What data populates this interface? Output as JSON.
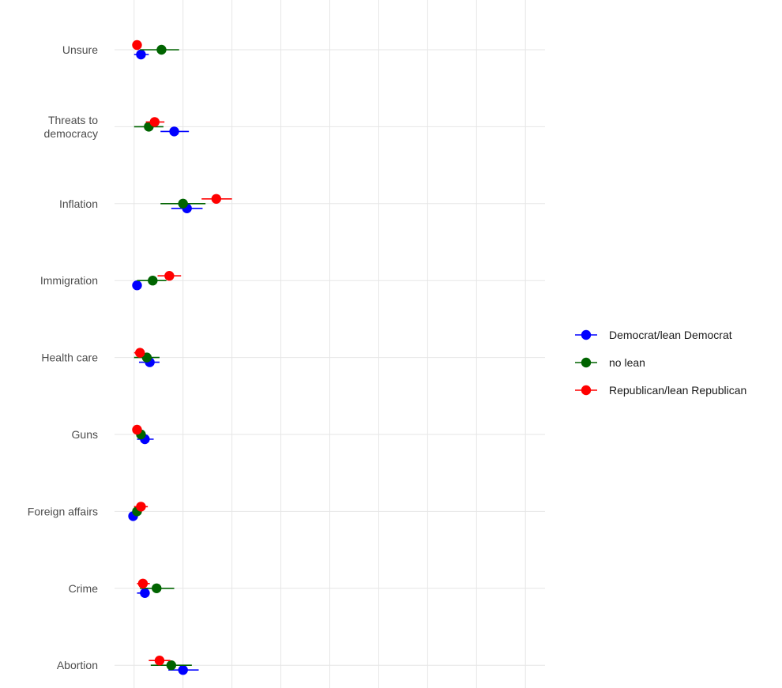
{
  "chart_data": {
    "type": "scatter",
    "subtype": "dot-with-error-bars",
    "title": "",
    "xlabel": "",
    "ylabel": "",
    "x_tick_labels_shown": false,
    "grid": true,
    "xlim": [
      -0.02,
      0.42
    ],
    "x_gridlines": [
      0,
      0.05,
      0.1,
      0.15,
      0.2,
      0.25,
      0.3,
      0.35,
      0.4
    ],
    "categories": [
      "Unsure",
      "Threats to democracy",
      "Inflation",
      "Immigration",
      "Health care",
      "Guns",
      "Foreign affairs",
      "Crime",
      "Abortion"
    ],
    "category_label_lines": [
      [
        "Unsure"
      ],
      [
        "Threats to",
        "democracy"
      ],
      [
        "Inflation"
      ],
      [
        "Immigration"
      ],
      [
        "Health care"
      ],
      [
        "Guns"
      ],
      [
        "Foreign affairs"
      ],
      [
        "Crime"
      ],
      [
        "Abortion"
      ]
    ],
    "legend_position": "right",
    "series": [
      {
        "name": "Democrat/lean Democrat",
        "color": "#0000ff",
        "values": [
          0.007,
          0.041,
          0.054,
          0.003,
          0.016,
          0.011,
          -0.001,
          0.011,
          0.05
        ],
        "lower": [
          0.0,
          0.027,
          0.038,
          0.003,
          0.005,
          0.003,
          -0.001,
          0.003,
          0.035
        ],
        "upper": [
          0.015,
          0.056,
          0.07,
          0.003,
          0.026,
          0.02,
          -0.001,
          0.016,
          0.066
        ]
      },
      {
        "name": "no lean",
        "color": "#006400",
        "values": [
          0.028,
          0.015,
          0.05,
          0.019,
          0.013,
          0.007,
          0.003,
          0.023,
          0.038
        ],
        "lower": [
          0.006,
          0.0,
          0.027,
          0.003,
          0.0,
          0.003,
          0.0,
          0.006,
          0.017
        ],
        "upper": [
          0.046,
          0.03,
          0.073,
          0.033,
          0.026,
          0.011,
          0.006,
          0.041,
          0.059
        ]
      },
      {
        "name": "Republican/lean Republican",
        "color": "#ff0000",
        "values": [
          0.003,
          0.021,
          0.084,
          0.036,
          0.006,
          0.003,
          0.007,
          0.009,
          0.026
        ],
        "lower": [
          0.003,
          0.012,
          0.069,
          0.024,
          0.0,
          0.003,
          0.0,
          0.003,
          0.015
        ],
        "upper": [
          0.003,
          0.031,
          0.1,
          0.048,
          0.011,
          0.003,
          0.014,
          0.016,
          0.037
        ]
      }
    ]
  }
}
